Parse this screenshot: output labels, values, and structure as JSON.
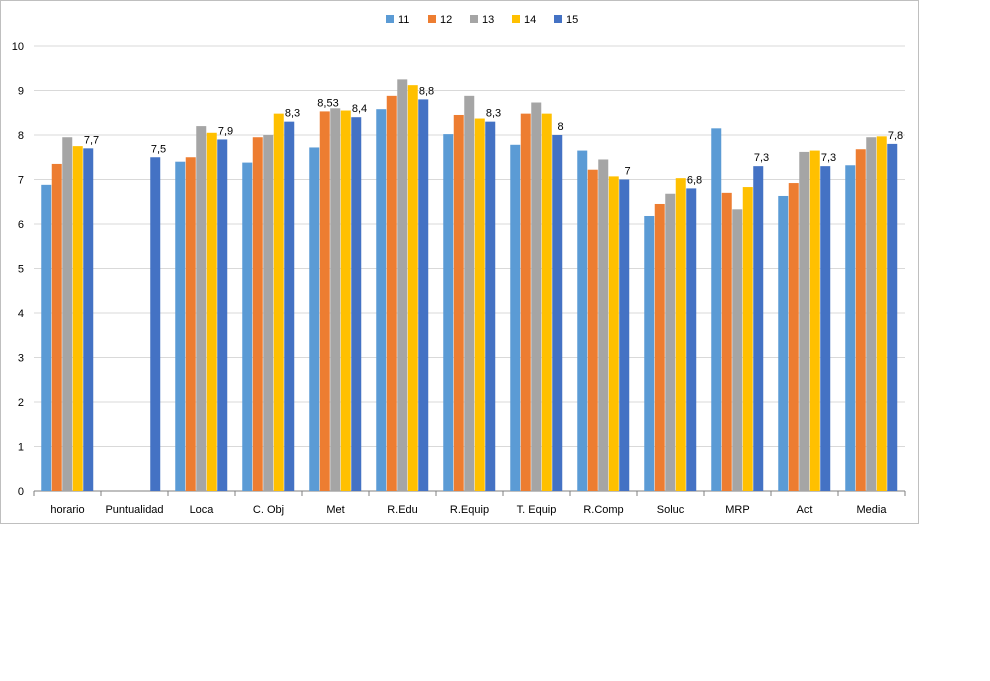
{
  "chart_data": {
    "type": "bar",
    "title": "",
    "xlabel": "",
    "ylabel": "",
    "ylim": [
      0,
      10
    ],
    "yticks": [
      "0",
      "1",
      "2",
      "3",
      "4",
      "5",
      "6",
      "7",
      "8",
      "9",
      "10"
    ],
    "grid": "horizontal",
    "legend_position": "top",
    "categories": [
      "horario",
      "Puntualidad",
      "Loca",
      "C. Obj",
      "Met",
      "R.Edu",
      "R.Equip",
      "T. Equip",
      "R.Comp",
      "Soluc",
      "MRP",
      "Act",
      "Media"
    ],
    "series": [
      {
        "name": "11",
        "color": "#5b9bd5",
        "values": [
          6.88,
          null,
          7.4,
          7.38,
          7.72,
          8.58,
          8.02,
          7.78,
          7.65,
          6.18,
          8.15,
          6.63,
          7.32
        ]
      },
      {
        "name": "12",
        "color": "#ed7d31",
        "values": [
          7.35,
          null,
          7.5,
          7.95,
          8.53,
          8.88,
          8.45,
          8.48,
          7.22,
          6.45,
          6.7,
          6.92,
          7.68
        ]
      },
      {
        "name": "13",
        "color": "#a5a5a5",
        "values": [
          7.95,
          null,
          8.2,
          8.0,
          8.6,
          9.25,
          8.88,
          8.73,
          7.45,
          6.68,
          6.33,
          7.62,
          7.95
        ]
      },
      {
        "name": "14",
        "color": "#ffc000",
        "values": [
          7.75,
          null,
          8.05,
          8.48,
          8.55,
          9.12,
          8.37,
          8.48,
          7.07,
          7.03,
          6.83,
          7.65,
          7.97
        ]
      },
      {
        "name": "15",
        "color": "#4472c4",
        "values": [
          7.7,
          7.5,
          7.9,
          8.3,
          8.4,
          8.8,
          8.3,
          8.0,
          7.0,
          6.8,
          7.3,
          7.3,
          7.8
        ]
      }
    ],
    "data_labels": [
      {
        "category": "horario",
        "series": "15",
        "text": "7,7"
      },
      {
        "category": "Puntualidad",
        "series": "15",
        "text": "7,5"
      },
      {
        "category": "Loca",
        "series": "15",
        "text": "7,9"
      },
      {
        "category": "C. Obj",
        "series": "15",
        "text": "8,3"
      },
      {
        "category": "Met",
        "series": "12",
        "text": "8,53"
      },
      {
        "category": "Met",
        "series": "15",
        "text": "8,4"
      },
      {
        "category": "R.Edu",
        "series": "15",
        "text": "8,8"
      },
      {
        "category": "R.Equip",
        "series": "15",
        "text": "8,3"
      },
      {
        "category": "T. Equip",
        "series": "15",
        "text": "8"
      },
      {
        "category": "R.Comp",
        "series": "15",
        "text": "7"
      },
      {
        "category": "Soluc",
        "series": "15",
        "text": "6,8"
      },
      {
        "category": "MRP",
        "series": "15",
        "text": "7,3"
      },
      {
        "category": "Act",
        "series": "15",
        "text": "7,3"
      },
      {
        "category": "Media",
        "series": "15",
        "text": "7,8"
      }
    ]
  }
}
